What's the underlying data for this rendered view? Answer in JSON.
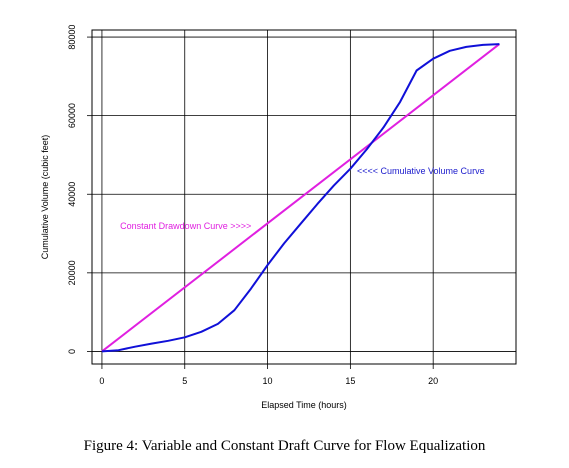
{
  "caption": "Figure 4: Variable and Constant Draft Curve for Flow Equalization",
  "chart_data": {
    "type": "line",
    "title": "",
    "xlabel": "Elapsed Time (hours)",
    "ylabel": "Cumulative Volume (cubic feet)",
    "xlim": [
      -0.6,
      25
    ],
    "ylim": [
      -3200,
      81800
    ],
    "xticks": [
      0,
      5,
      10,
      15,
      20
    ],
    "yticks": [
      0,
      20000,
      40000,
      60000,
      80000
    ],
    "grid": true,
    "series": [
      {
        "name": "Cumulative Volume Curve",
        "color": "#1010d8",
        "x": [
          0,
          1,
          2,
          3,
          4,
          5,
          6,
          7,
          8,
          9,
          10,
          11,
          12,
          13,
          14,
          15,
          16,
          17,
          18,
          19,
          20,
          21,
          22,
          23,
          24
        ],
        "y": [
          0,
          300,
          1200,
          2000,
          2700,
          3600,
          5000,
          7000,
          10500,
          16000,
          22000,
          27500,
          32500,
          37500,
          42200,
          46500,
          51500,
          57000,
          63500,
          71500,
          74500,
          76500,
          77500,
          78000,
          78200
        ]
      },
      {
        "name": "Constant Drawdown Curve",
        "color": "#e020e0",
        "x": [
          0,
          24
        ],
        "y": [
          0,
          78200
        ]
      }
    ],
    "annotations": [
      {
        "text": "<<<< Cumulative Volume Curve",
        "x": 15.4,
        "y": 45200,
        "color": "#1a1acc"
      },
      {
        "text": "Constant Drawdown Curve >>>>",
        "x": 1.1,
        "y": 31200,
        "color": "#e020e0"
      }
    ]
  }
}
